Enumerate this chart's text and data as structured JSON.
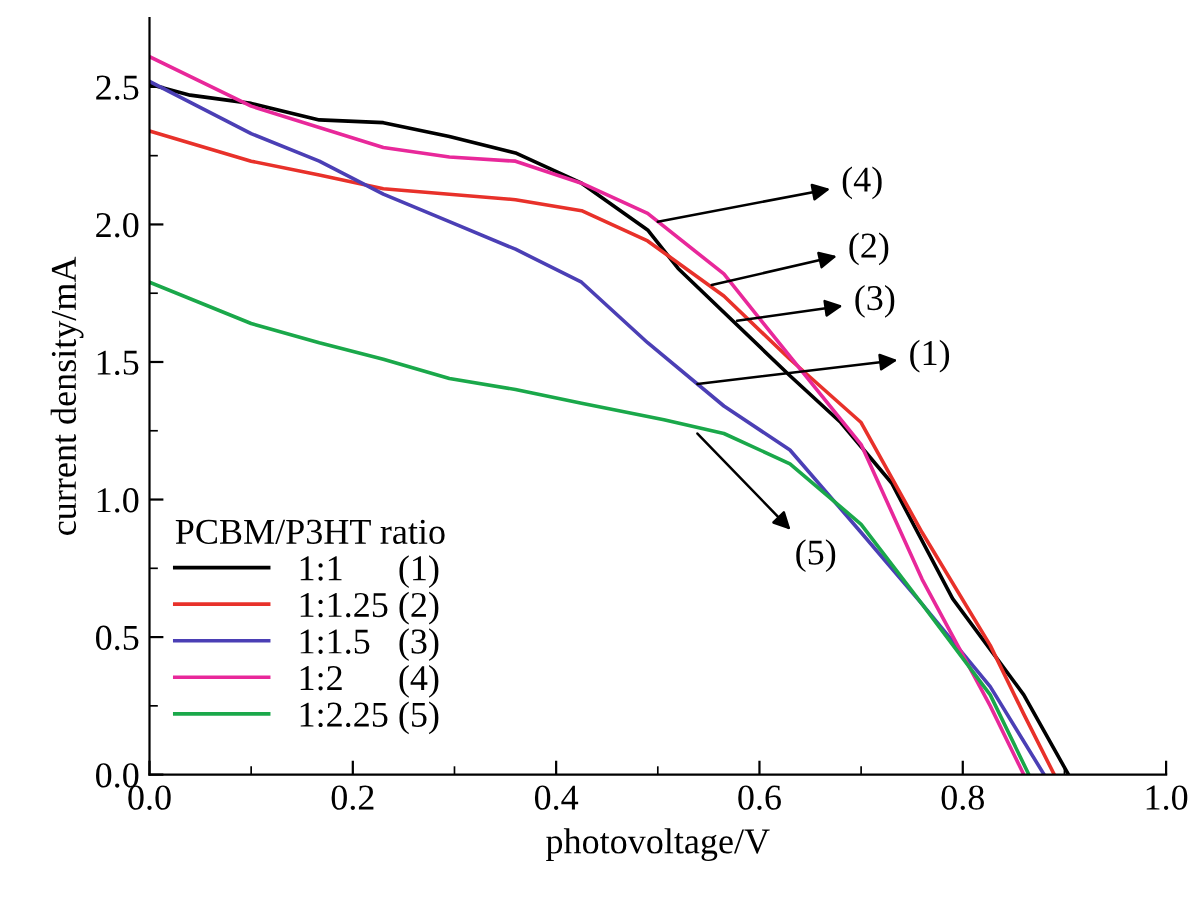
{
  "chart_data": {
    "type": "line",
    "xlabel": "photovoltage/V",
    "ylabel": "current density/mA",
    "legend_title": "PCBM/P3HT ratio",
    "legend": "bottom left",
    "grid": false,
    "marker": "none",
    "line_style": "solid",
    "xlim": [
      0,
      1.0
    ],
    "ylim": [
      0,
      2.75
    ],
    "xticks": [
      {
        "value": 0,
        "label": "0.0"
      },
      {
        "value": 0.1,
        "label": null
      },
      0.2,
      {
        "value": 0.3,
        "label": null
      },
      0.4,
      {
        "value": 0.5,
        "label": null
      },
      0.6,
      {
        "value": 0.7,
        "label": null
      },
      0.8,
      {
        "value": 0.9,
        "label": null
      },
      {
        "value": 1.0,
        "label": "1.0"
      }
    ],
    "yticks": [
      {
        "value": 0,
        "label": "0.0"
      },
      {
        "value": 0.25,
        "label": null
      },
      0.5,
      {
        "value": 0.75,
        "label": null
      },
      {
        "value": 1.0,
        "label": "1.0"
      },
      {
        "value": 1.25,
        "label": null
      },
      1.5,
      {
        "value": 1.75,
        "label": null
      },
      {
        "value": 2.0,
        "label": "2.0"
      },
      {
        "value": 2.25,
        "label": null
      },
      2.5
    ],
    "series": [
      {
        "name": "1:1      (1)",
        "color": "#000000",
        "x": [
          0,
          0.04,
          0.1,
          0.167,
          0.23,
          0.295,
          0.36,
          0.425,
          0.49,
          0.52,
          0.63,
          0.68,
          0.73,
          0.79,
          0.86,
          0.904
        ],
        "values": [
          2.51,
          2.47,
          2.44,
          2.38,
          2.37,
          2.32,
          2.26,
          2.15,
          1.98,
          1.84,
          1.45,
          1.28,
          1.06,
          0.64,
          0.29,
          0
        ]
      },
      {
        "name": "1:1.25 (2)",
        "color": "#e8312a",
        "x": [
          0,
          0.1,
          0.167,
          0.23,
          0.295,
          0.36,
          0.425,
          0.49,
          0.565,
          0.63,
          0.7,
          0.76,
          0.827,
          0.86,
          0.89
        ],
        "values": [
          2.34,
          2.23,
          2.18,
          2.13,
          2.11,
          2.09,
          2.05,
          1.94,
          1.74,
          1.51,
          1.28,
          0.88,
          0.47,
          0.22,
          0
        ]
      },
      {
        "name": "1:1.5   (3)",
        "color": "#4b3fb5",
        "x": [
          0,
          0.1,
          0.167,
          0.23,
          0.295,
          0.36,
          0.425,
          0.49,
          0.565,
          0.63,
          0.7,
          0.76,
          0.827,
          0.88
        ],
        "values": [
          2.52,
          2.33,
          2.23,
          2.11,
          2.01,
          1.91,
          1.79,
          1.57,
          1.34,
          1.18,
          0.88,
          0.62,
          0.32,
          0
        ]
      },
      {
        "name": "1:2      (4)",
        "color": "#e8289a",
        "x": [
          0,
          0.1,
          0.23,
          0.295,
          0.36,
          0.425,
          0.49,
          0.565,
          0.63,
          0.7,
          0.76,
          0.827,
          0.86
        ],
        "values": [
          2.61,
          2.43,
          2.28,
          2.245,
          2.23,
          2.15,
          2.04,
          1.82,
          1.52,
          1.2,
          0.71,
          0.25,
          0
        ]
      },
      {
        "name": "1:2.25 (5)",
        "color": "#1aa84a",
        "x": [
          0,
          0.1,
          0.167,
          0.23,
          0.295,
          0.36,
          0.425,
          0.506,
          0.565,
          0.63,
          0.7,
          0.76,
          0.827,
          0.865
        ],
        "values": [
          1.79,
          1.64,
          1.57,
          1.51,
          1.44,
          1.4,
          1.35,
          1.29,
          1.24,
          1.13,
          0.91,
          0.62,
          0.29,
          0
        ]
      }
    ],
    "annotations": [
      {
        "text": "(4)",
        "x": 0.5,
        "y": 2.01
      },
      {
        "text": "(2)",
        "x": 0.553,
        "y": 1.78
      },
      {
        "text": "(3)",
        "x": 0.578,
        "y": 1.65
      },
      {
        "text": "(1)",
        "x": 0.539,
        "y": 1.42
      },
      {
        "text": "(5)",
        "x": 0.539,
        "y": 1.24
      }
    ]
  }
}
